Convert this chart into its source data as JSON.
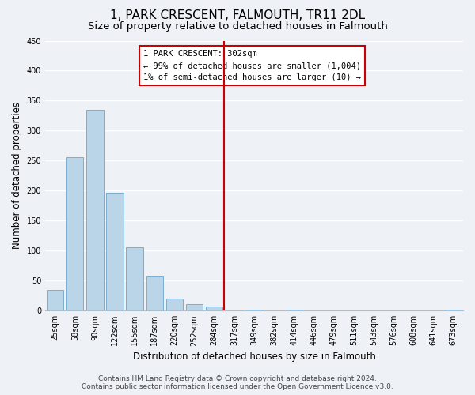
{
  "title": "1, PARK CRESCENT, FALMOUTH, TR11 2DL",
  "subtitle": "Size of property relative to detached houses in Falmouth",
  "xlabel": "Distribution of detached houses by size in Falmouth",
  "ylabel": "Number of detached properties",
  "bar_labels": [
    "25sqm",
    "58sqm",
    "90sqm",
    "122sqm",
    "155sqm",
    "187sqm",
    "220sqm",
    "252sqm",
    "284sqm",
    "317sqm",
    "349sqm",
    "382sqm",
    "414sqm",
    "446sqm",
    "479sqm",
    "511sqm",
    "543sqm",
    "576sqm",
    "608sqm",
    "641sqm",
    "673sqm"
  ],
  "bar_values": [
    35,
    256,
    335,
    197,
    105,
    57,
    20,
    11,
    7,
    0,
    1,
    0,
    1,
    0,
    0,
    0,
    0,
    0,
    0,
    0,
    1
  ],
  "bar_color": "#bad4e8",
  "bar_edge_color": "#7aaecf",
  "vline_x": 8.5,
  "vline_color": "#cc0000",
  "annotation_line1": "1 PARK CRESCENT: 302sqm",
  "annotation_line2": "← 99% of detached houses are smaller (1,004)",
  "annotation_line3": "1% of semi-detached houses are larger (10) →",
  "ylim": [
    0,
    450
  ],
  "yticks": [
    0,
    50,
    100,
    150,
    200,
    250,
    300,
    350,
    400,
    450
  ],
  "footer_line1": "Contains HM Land Registry data © Crown copyright and database right 2024.",
  "footer_line2": "Contains public sector information licensed under the Open Government Licence v3.0.",
  "background_color": "#eef2f7",
  "grid_color": "#ffffff",
  "title_fontsize": 11,
  "subtitle_fontsize": 9.5,
  "axis_label_fontsize": 8.5,
  "tick_fontsize": 7,
  "footer_fontsize": 6.5
}
